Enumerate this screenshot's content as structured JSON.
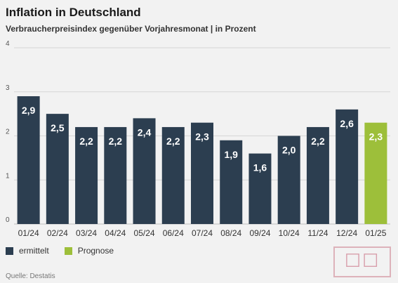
{
  "header": {
    "title": "Inflation in Deutschland",
    "subtitle": "Verbraucherpreisindex gegenüber Vorjahresmonat | in Prozent"
  },
  "legend": {
    "items": [
      {
        "label": "ermittelt",
        "color": "#2c3e50"
      },
      {
        "label": "Prognose",
        "color": "#9dbf3a"
      }
    ]
  },
  "source": "Quelle: Destatis",
  "chart_data": {
    "type": "bar",
    "categories": [
      "01/24",
      "02/24",
      "03/24",
      "04/24",
      "05/24",
      "06/24",
      "07/24",
      "08/24",
      "09/24",
      "10/24",
      "11/24",
      "12/24",
      "01/25"
    ],
    "values": [
      2.9,
      2.5,
      2.2,
      2.2,
      2.4,
      2.2,
      2.3,
      1.9,
      1.6,
      2.0,
      2.2,
      2.6,
      2.3
    ],
    "value_labels": [
      "2,9",
      "2,5",
      "2,2",
      "2,2",
      "2,4",
      "2,2",
      "2,3",
      "1,9",
      "1,6",
      "2,0",
      "2,2",
      "2,6",
      "2,3"
    ],
    "kinds": [
      "ermittelt",
      "ermittelt",
      "ermittelt",
      "ermittelt",
      "ermittelt",
      "ermittelt",
      "ermittelt",
      "ermittelt",
      "ermittelt",
      "ermittelt",
      "ermittelt",
      "ermittelt",
      "Prognose"
    ],
    "colors": {
      "ermittelt": "#2c3e50",
      "Prognose": "#9dbf3a"
    },
    "title": "Inflation in Deutschland",
    "xlabel": "",
    "ylabel": "",
    "ylim": [
      0,
      4
    ],
    "yticks": [
      "0",
      "1",
      "2",
      "3",
      "4"
    ],
    "grid": true
  }
}
